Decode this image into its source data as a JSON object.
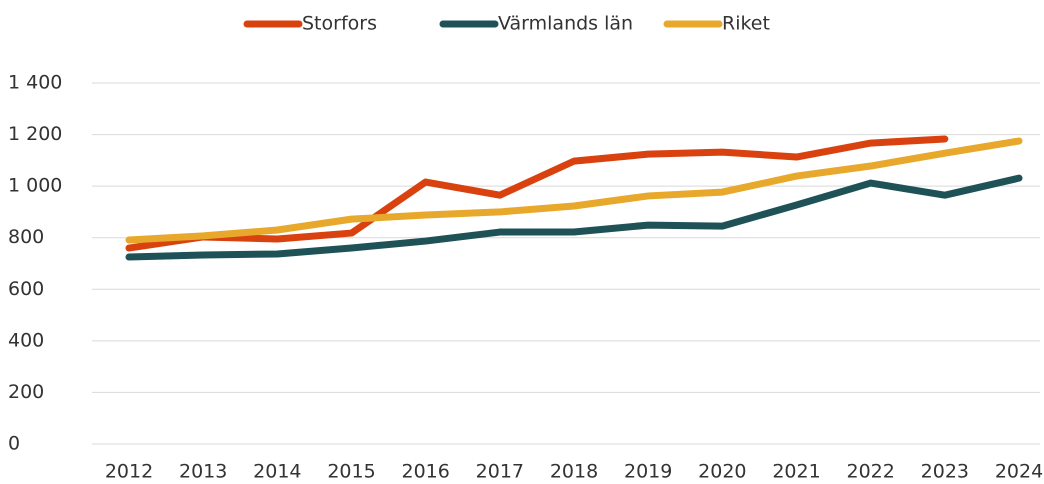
{
  "chart_data": {
    "type": "line",
    "categories": [
      "2012",
      "2013",
      "2014",
      "2015",
      "2016",
      "2017",
      "2018",
      "2019",
      "2020",
      "2021",
      "2022",
      "2023",
      "2024"
    ],
    "series": [
      {
        "name": "Storfors",
        "color": "#d9420f",
        "values": [
          760,
          803,
          795,
          818,
          1016,
          965,
          1097,
          1124,
          1132,
          1113,
          1167,
          1183,
          null
        ]
      },
      {
        "name": "Värmlands län",
        "color": "#1f5257",
        "values": [
          725,
          733,
          737,
          760,
          787,
          822,
          822,
          849,
          845,
          927,
          1012,
          965,
          1031
        ]
      },
      {
        "name": "Riket",
        "color": "#e8a82c",
        "values": [
          791,
          807,
          830,
          872,
          888,
          900,
          923,
          962,
          977,
          1039,
          1078,
          1128,
          1175
        ]
      }
    ],
    "ylim": [
      0,
      1400
    ],
    "yticks": [
      0,
      200,
      400,
      600,
      800,
      {
        "value": 1000,
        "label": "1 000"
      },
      {
        "value": 1200,
        "label": "1 200"
      },
      {
        "value": 1400,
        "label": "1 400"
      }
    ],
    "grid": true,
    "legend": "top"
  }
}
